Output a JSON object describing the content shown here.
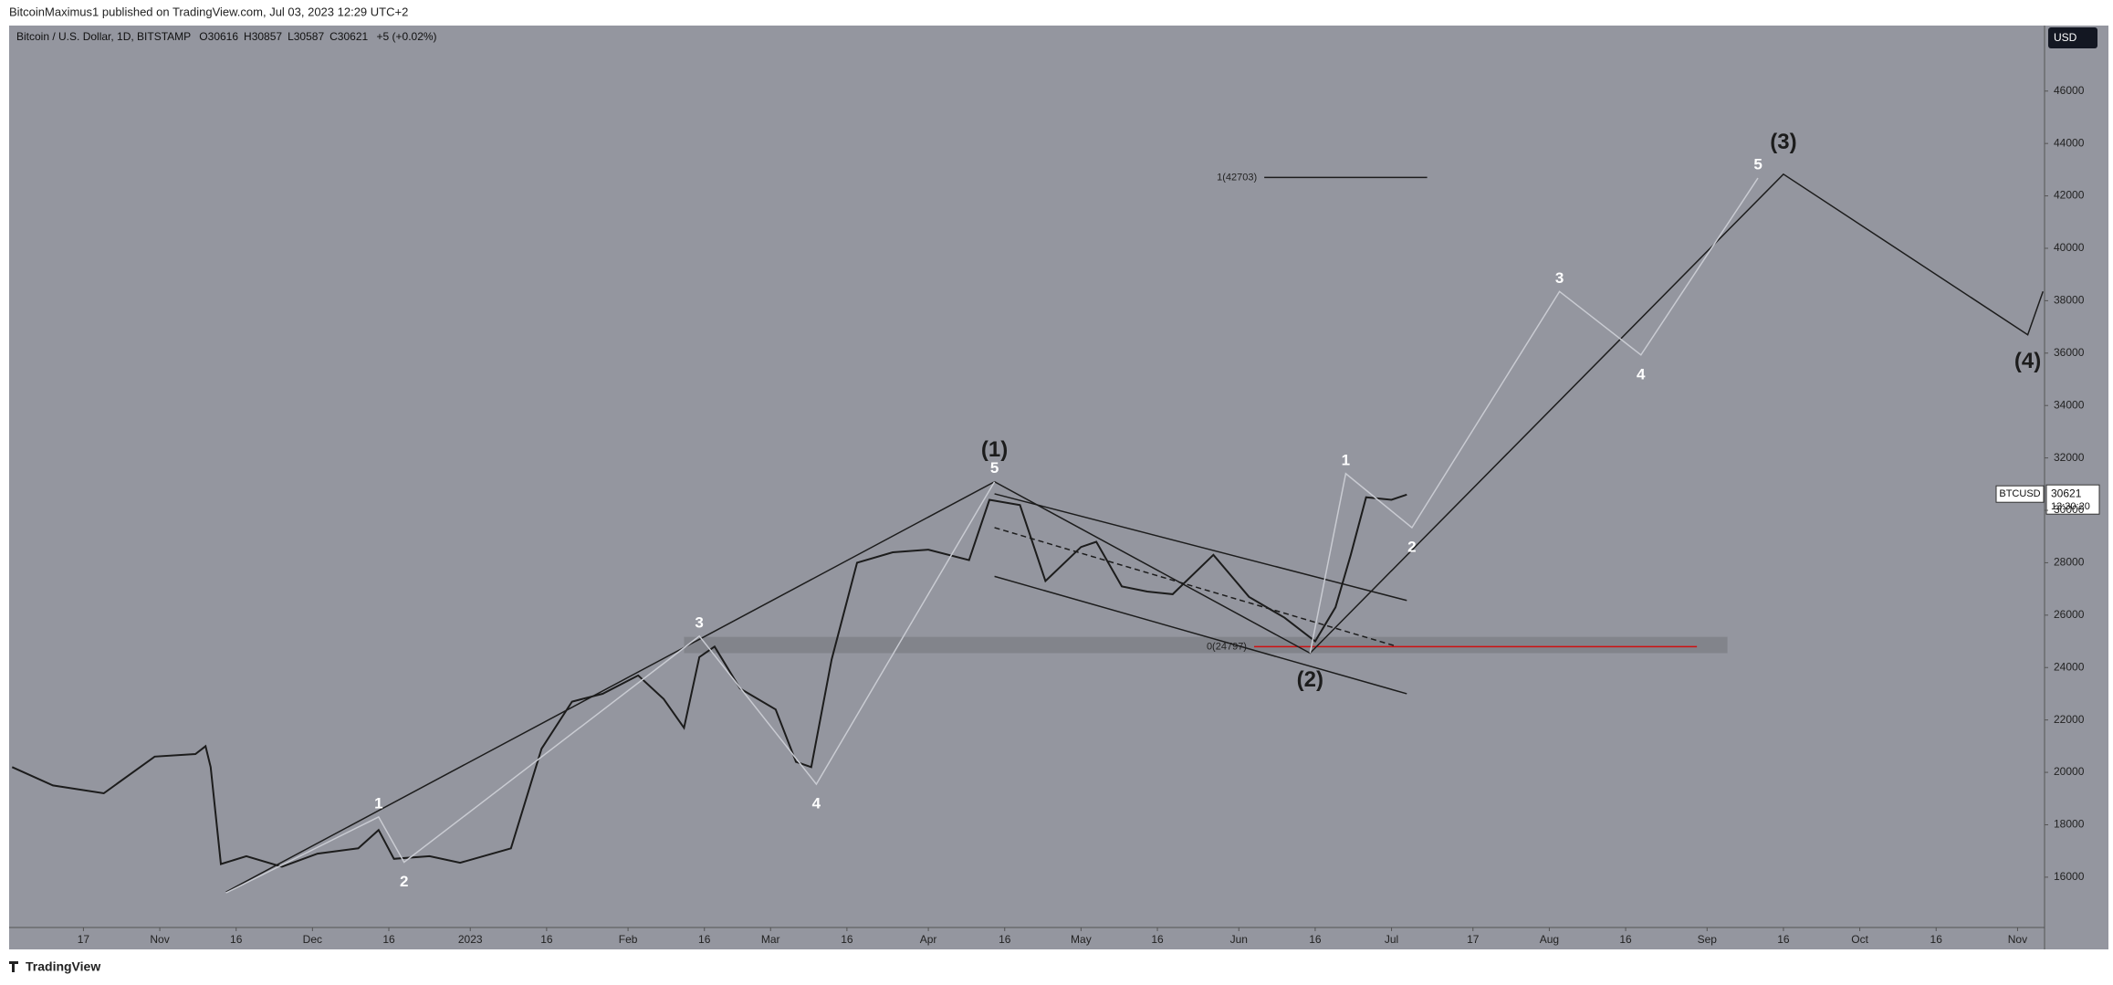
{
  "header": "BitcoinMaximus1 published on TradingView.com, Jul 03, 2023 12:29 UTC+2",
  "footer": "TradingView",
  "legend": {
    "symbol": "Bitcoin / U.S. Dollar, 1D, BITSTAMP",
    "ohlc": [
      {
        "label": "O",
        "value": 30616
      },
      {
        "label": "H",
        "value": 30857
      },
      {
        "label": "L",
        "value": 30587
      },
      {
        "label": "C",
        "value": 30621
      }
    ],
    "change": "+5 (+0.02%)"
  },
  "currency": "USD",
  "price_tag": {
    "symbol": "BTCUSD",
    "value": 30621,
    "countdown": "13:30:20"
  },
  "chart_data": {
    "type": "line",
    "xlim": [
      1.4,
      401.3
    ],
    "ylim": [
      14080,
      48500
    ],
    "xticks": [
      {
        "value": 16,
        "label": "17"
      },
      {
        "value": 31,
        "label": "Nov"
      },
      {
        "value": 46,
        "label": "16"
      },
      {
        "value": 61,
        "label": "Dec"
      },
      {
        "value": 76,
        "label": "16"
      },
      {
        "value": 92,
        "label": "2023"
      },
      {
        "value": 107,
        "label": "16"
      },
      {
        "value": 123,
        "label": "Feb"
      },
      {
        "value": 138,
        "label": "16"
      },
      {
        "value": 151,
        "label": "Mar"
      },
      {
        "value": 166,
        "label": "16"
      },
      {
        "value": 182,
        "label": "Apr"
      },
      {
        "value": 197,
        "label": "16"
      },
      {
        "value": 212,
        "label": "May"
      },
      {
        "value": 227,
        "label": "16"
      },
      {
        "value": 243,
        "label": "Jun"
      },
      {
        "value": 258,
        "label": "16"
      },
      {
        "value": 273,
        "label": "Jul"
      },
      {
        "value": 289,
        "label": "17"
      },
      {
        "value": 304,
        "label": "Aug"
      },
      {
        "value": 319,
        "label": "16"
      },
      {
        "value": 335,
        "label": "Sep"
      },
      {
        "value": 350,
        "label": "16"
      },
      {
        "value": 365,
        "label": "Oct"
      },
      {
        "value": 380,
        "label": "16"
      },
      {
        "value": 396,
        "label": "Nov"
      }
    ],
    "yticks": [
      16000,
      18000,
      20000,
      22000,
      24000,
      26000,
      28000,
      30000,
      32000,
      34000,
      36000,
      38000,
      40000,
      42000,
      44000,
      46000
    ],
    "series": [
      {
        "name": "BTCUSD",
        "color": "#1c1c1c",
        "x": [
          2,
          10,
          20,
          30,
          38,
          40,
          41,
          43,
          48,
          55,
          62,
          70,
          74,
          77,
          84,
          90,
          100,
          106,
          112,
          118,
          125,
          130,
          134,
          137,
          140,
          145,
          152,
          156,
          159,
          163,
          168,
          175,
          182,
          190,
          194,
          200,
          205,
          212,
          215,
          220,
          225,
          230,
          238,
          245,
          252,
          258,
          262,
          265,
          268,
          273,
          276
        ],
        "values": [
          20200,
          19500,
          19200,
          20600,
          20700,
          21000,
          20200,
          16500,
          16800,
          16400,
          16900,
          17100,
          17800,
          16700,
          16800,
          16550,
          17100,
          20900,
          22700,
          23000,
          23700,
          22800,
          21700,
          24400,
          24800,
          23200,
          22400,
          20400,
          20200,
          24300,
          28000,
          28400,
          28500,
          28100,
          30400,
          30200,
          27300,
          28600,
          28800,
          27100,
          26900,
          26800,
          28300,
          26700,
          25900,
          25000,
          26300,
          28300,
          30500,
          30400,
          30600
        ]
      }
    ],
    "waves": [
      {
        "color": "#1c1c1c",
        "x": [
          44,
          195,
          257,
          350,
          398,
          401
        ],
        "values": [
          15430,
          31090,
          24550,
          42830,
          36700,
          38350
        ],
        "labels": [
          null,
          "(1)",
          "(2)",
          "(3)",
          "(4)",
          null
        ]
      },
      {
        "color": "#c9cbd2",
        "x": [
          44,
          74,
          79,
          137,
          160,
          195
        ],
        "values": [
          15400,
          18300,
          16570,
          25200,
          19550,
          31090
        ],
        "labels": [
          null,
          "1",
          "2",
          "3",
          "4",
          "5"
        ]
      },
      {
        "color": "#c9cbd2",
        "x": [
          257,
          264,
          277,
          306,
          322,
          345
        ],
        "values": [
          24550,
          31400,
          29340,
          38350,
          35930,
          42680
        ],
        "labels": [
          null,
          "1",
          "2",
          "3",
          "4",
          "5"
        ]
      }
    ],
    "channel": [
      {
        "x": [
          195,
          276
        ],
        "values": [
          30630,
          26560
        ]
      },
      {
        "x": [
          195,
          276
        ],
        "values": [
          27480,
          23000
        ]
      },
      {
        "x": [
          195,
          274
        ],
        "values": [
          29340,
          24810
        ],
        "dashed": true
      }
    ],
    "zone": {
      "x": [
        134,
        339
      ],
      "values": [
        24550,
        25170
      ],
      "color": "#7d7f86"
    },
    "fib": [
      {
        "label": "1(42703)",
        "value": 42703,
        "x": [
          248,
          280
        ],
        "color": "#1c1c1c"
      },
      {
        "label": "0(24797)",
        "value": 24797,
        "x": [
          246,
          333
        ],
        "color": "#d01010"
      }
    ]
  }
}
